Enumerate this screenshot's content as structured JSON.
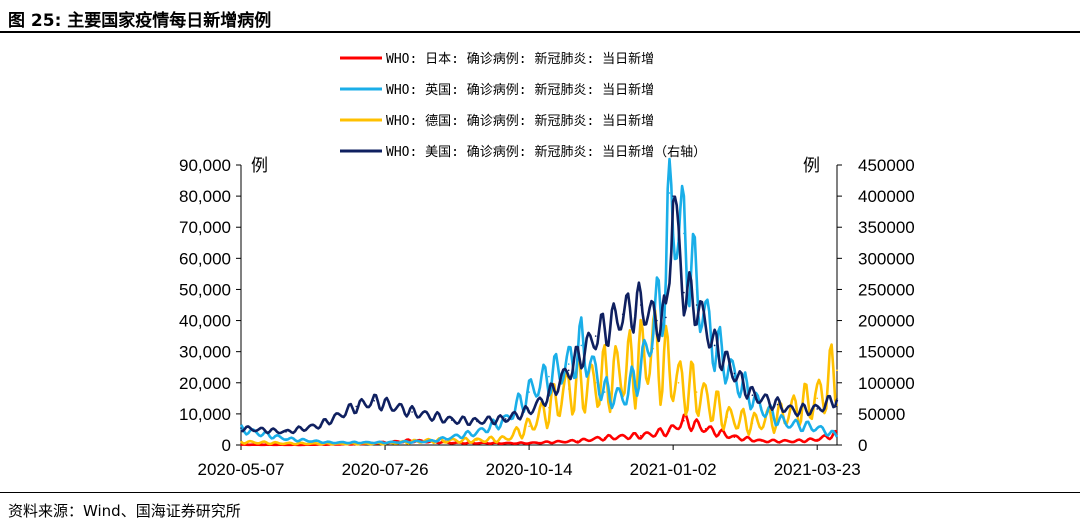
{
  "figure": {
    "title": "图 25:  主要国家疫情每日新增病例",
    "source": "资料来源：Wind、国海证券研究所"
  },
  "chart_data": {
    "type": "line",
    "y_unit_left": "例",
    "y_unit_right": "例",
    "ylim_left": [
      0,
      90000
    ],
    "ylim_right": [
      0,
      450000
    ],
    "yticks_left": [
      "0",
      "10,000",
      "20,000",
      "30,000",
      "40,000",
      "50,000",
      "60,000",
      "70,000",
      "80,000",
      "90,000"
    ],
    "yticks_right": [
      "0",
      "50000",
      "100000",
      "150000",
      "200000",
      "250000",
      "300000",
      "350000",
      "400000",
      "450000"
    ],
    "xticks": [
      "2020-05-07",
      "2020-07-26",
      "2020-10-14",
      "2021-01-02",
      "2021-03-23"
    ],
    "xlim": [
      "2020-05-07",
      "2021-04-03"
    ],
    "legend_position": "top-center",
    "series": [
      {
        "name": "WHO: 日本: 确诊病例: 新冠肺炎: 当日新增",
        "color": "#ff0000",
        "axis": "left",
        "points": [
          [
            "2020-05-07",
            100
          ],
          [
            "2020-06-10",
            60
          ],
          [
            "2020-07-10",
            300
          ],
          [
            "2020-07-26",
            800
          ],
          [
            "2020-08-10",
            1400
          ],
          [
            "2020-09-01",
            700
          ],
          [
            "2020-09-30",
            550
          ],
          [
            "2020-10-14",
            600
          ],
          [
            "2020-11-10",
            1300
          ],
          [
            "2020-11-25",
            2300
          ],
          [
            "2020-12-15",
            3000
          ],
          [
            "2020-12-31",
            4500
          ],
          [
            "2021-01-08",
            7800
          ],
          [
            "2021-01-20",
            5200
          ],
          [
            "2021-02-05",
            2500
          ],
          [
            "2021-02-20",
            1300
          ],
          [
            "2021-03-10",
            1200
          ],
          [
            "2021-03-23",
            1800
          ],
          [
            "2021-04-03",
            3500
          ]
        ]
      },
      {
        "name": "WHO: 英国: 确诊病例: 新冠肺炎: 当日新增",
        "color": "#1aaee8",
        "axis": "left",
        "points": [
          [
            "2020-05-07",
            5000
          ],
          [
            "2020-06-01",
            2000
          ],
          [
            "2020-06-25",
            800
          ],
          [
            "2020-07-26",
            800
          ],
          [
            "2020-08-20",
            1200
          ],
          [
            "2020-09-15",
            4000
          ],
          [
            "2020-10-01",
            8000
          ],
          [
            "2020-10-14",
            17000
          ],
          [
            "2020-10-25",
            22000
          ],
          [
            "2020-11-05",
            26000
          ],
          [
            "2020-11-12",
            32000
          ],
          [
            "2020-11-25",
            17000
          ],
          [
            "2020-12-05",
            15000
          ],
          [
            "2020-12-15",
            24000
          ],
          [
            "2020-12-29",
            53000
          ],
          [
            "2020-12-31",
            81000
          ],
          [
            "2021-01-05",
            68000
          ],
          [
            "2021-01-08",
            68000
          ],
          [
            "2021-01-15",
            50000
          ],
          [
            "2021-01-25",
            32000
          ],
          [
            "2021-02-05",
            22000
          ],
          [
            "2021-02-20",
            12000
          ],
          [
            "2021-03-05",
            7000
          ],
          [
            "2021-03-23",
            5500
          ],
          [
            "2021-04-03",
            3000
          ]
        ]
      },
      {
        "name": "WHO: 德国: 确诊病例: 新冠肺炎: 当日新增",
        "color": "#ffc000",
        "axis": "left",
        "points": [
          [
            "2020-05-07",
            1000
          ],
          [
            "2020-06-01",
            500
          ],
          [
            "2020-07-01",
            400
          ],
          [
            "2020-07-26",
            500
          ],
          [
            "2020-08-20",
            1400
          ],
          [
            "2020-09-15",
            1500
          ],
          [
            "2020-10-01",
            2000
          ],
          [
            "2020-10-14",
            6000
          ],
          [
            "2020-10-25",
            12000
          ],
          [
            "2020-11-05",
            18000
          ],
          [
            "2020-11-20",
            20000
          ],
          [
            "2020-12-10",
            25000
          ],
          [
            "2020-12-22",
            31000
          ],
          [
            "2021-01-05",
            20000
          ],
          [
            "2021-01-15",
            17000
          ],
          [
            "2021-02-01",
            9000
          ],
          [
            "2021-02-15",
            7000
          ],
          [
            "2021-03-01",
            9000
          ],
          [
            "2021-03-23",
            15000
          ],
          [
            "2021-04-03",
            24000
          ]
        ]
      },
      {
        "name": "WHO: 美国: 确诊病例: 新冠肺炎: 当日新增（右轴）",
        "color": "#0f2060",
        "axis": "right",
        "points": [
          [
            "2020-05-07",
            27000
          ],
          [
            "2020-06-01",
            21000
          ],
          [
            "2020-06-20",
            32000
          ],
          [
            "2020-07-10",
            62000
          ],
          [
            "2020-07-20",
            71000
          ],
          [
            "2020-08-10",
            53000
          ],
          [
            "2020-09-01",
            40000
          ],
          [
            "2020-09-15",
            38000
          ],
          [
            "2020-10-01",
            42000
          ],
          [
            "2020-10-14",
            55000
          ],
          [
            "2020-10-25",
            80000
          ],
          [
            "2020-11-05",
            120000
          ],
          [
            "2020-11-20",
            175000
          ],
          [
            "2020-12-05",
            210000
          ],
          [
            "2020-12-15",
            225000
          ],
          [
            "2020-12-24",
            200000
          ],
          [
            "2020-12-29",
            205000
          ],
          [
            "2021-01-02",
            400000
          ],
          [
            "2021-01-08",
            245000
          ],
          [
            "2021-01-15",
            225000
          ],
          [
            "2021-01-25",
            160000
          ],
          [
            "2021-02-05",
            115000
          ],
          [
            "2021-02-15",
            80000
          ],
          [
            "2021-03-01",
            65000
          ],
          [
            "2021-03-10",
            55000
          ],
          [
            "2021-03-23",
            58000
          ],
          [
            "2021-04-03",
            75000
          ]
        ]
      }
    ]
  }
}
